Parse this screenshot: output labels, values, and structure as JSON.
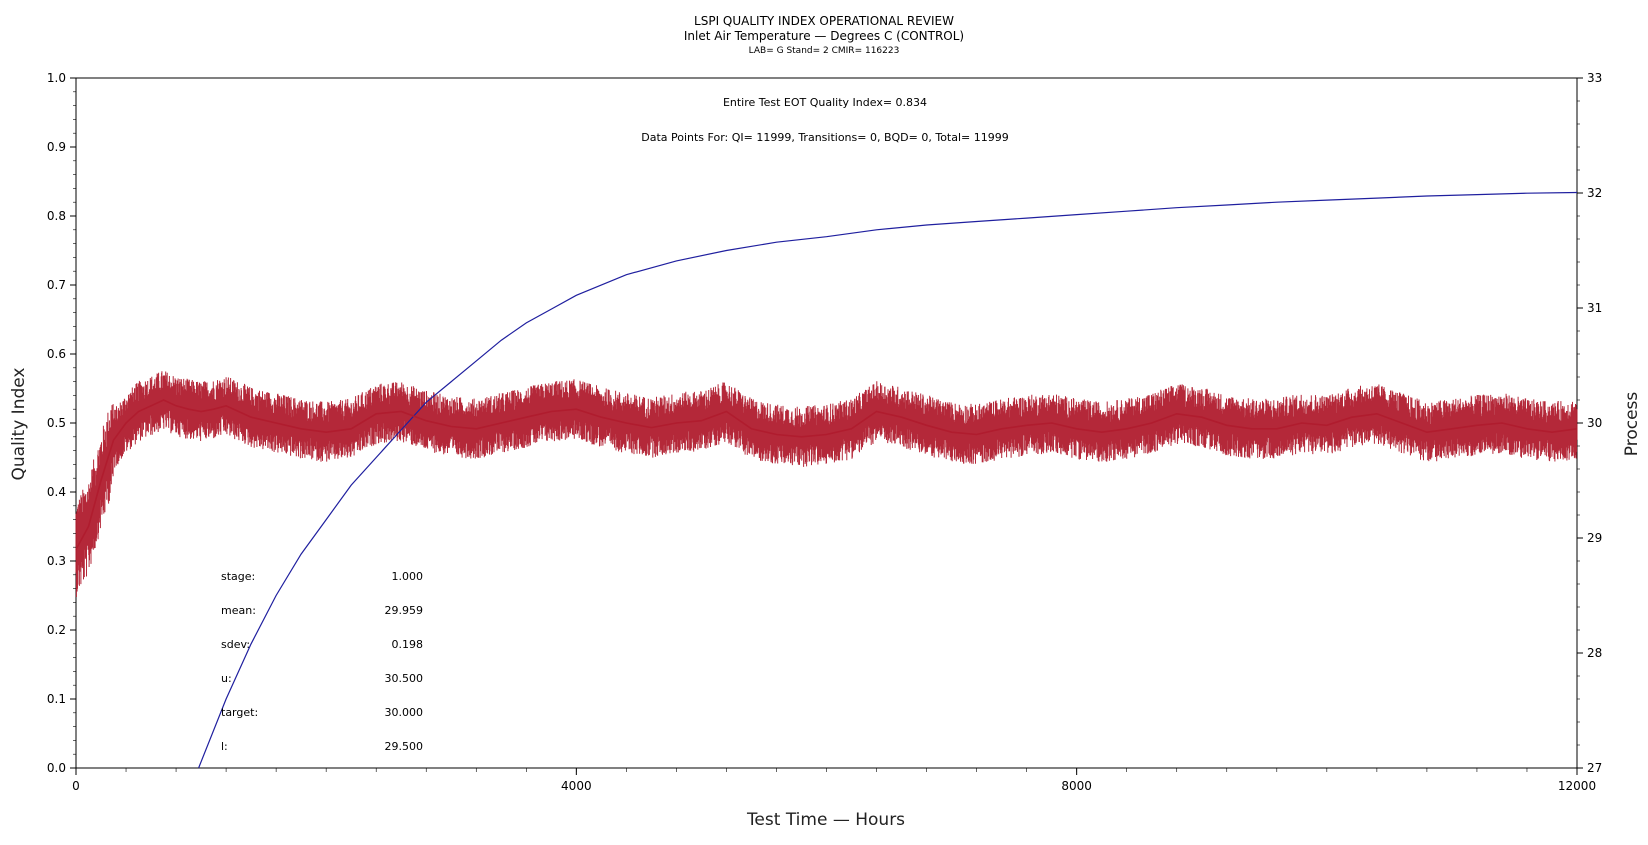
{
  "chart_data": {
    "type": "line",
    "title": "LSPI QUALITY INDEX OPERATIONAL REVIEW",
    "subtitle": "Inlet Air Temperature — Degrees C (CONTROL)",
    "subtitle2": "LAB= G Stand= 2 CMIR= 116223",
    "xlabel": "Test Time — Hours",
    "ylabel": "Quality Index",
    "y2label": "Process",
    "xlim": [
      0,
      12000
    ],
    "ylim": [
      0.0,
      1.0
    ],
    "y2lim": [
      27,
      33
    ],
    "x_ticks": [
      0,
      4000,
      8000,
      12000
    ],
    "y_ticks": [
      0.0,
      0.1,
      0.2,
      0.3,
      0.4,
      0.5,
      0.6,
      0.7,
      0.8,
      0.9,
      1.0
    ],
    "y_tick_labels": [
      "0.0",
      "0.1",
      "0.2",
      "0.3",
      "0.4",
      "0.5",
      "0.6",
      "0.7",
      "0.8",
      "0.9",
      "1.0"
    ],
    "y2_ticks": [
      27,
      28,
      29,
      30,
      31,
      32,
      33
    ],
    "grid": false,
    "annotations": {
      "qi_text": "Entire Test EOT Quality Index=   0.834",
      "points_text": "Data Points For: QI= 11999, Transitions=     0, BQD=     0, Total= 11999"
    },
    "stats": [
      {
        "label": "stage:",
        "value": "1.000"
      },
      {
        "label": "mean:",
        "value": "29.959"
      },
      {
        "label": "sdev:",
        "value": "0.198"
      },
      {
        "label": "u:",
        "value": "30.500"
      },
      {
        "label": "target:",
        "value": "30.000"
      },
      {
        "label": "l:",
        "value": "29.500"
      }
    ],
    "series": [
      {
        "axis": "left",
        "color": "#1f1f9f",
        "x": [
          980,
          1200,
          1400,
          1600,
          1800,
          2000,
          2200,
          2400,
          2600,
          2800,
          3000,
          3200,
          3400,
          3600,
          3800,
          4000,
          4400,
          4800,
          5200,
          5600,
          6000,
          6400,
          6800,
          7200,
          7600,
          8000,
          8400,
          8800,
          9200,
          9600,
          10000,
          10400,
          10800,
          11200,
          11600,
          12000
        ],
        "values": [
          0.0,
          0.1,
          0.18,
          0.25,
          0.31,
          0.36,
          0.41,
          0.45,
          0.49,
          0.53,
          0.56,
          0.59,
          0.62,
          0.645,
          0.665,
          0.685,
          0.715,
          0.735,
          0.75,
          0.762,
          0.77,
          0.78,
          0.787,
          0.792,
          0.797,
          0.802,
          0.807,
          0.812,
          0.816,
          0.82,
          0.823,
          0.826,
          0.829,
          0.831,
          0.833,
          0.834
        ]
      },
      {
        "axis": "right",
        "color": "#b01c2e",
        "x": [
          0,
          100,
          200,
          300,
          400,
          500,
          600,
          700,
          800,
          900,
          1000,
          1100,
          1200,
          1300,
          1400,
          1600,
          1800,
          2000,
          2200,
          2400,
          2600,
          2800,
          3000,
          3200,
          3400,
          3600,
          3800,
          4000,
          4200,
          4400,
          4600,
          4800,
          5000,
          5200,
          5400,
          5600,
          5800,
          6000,
          6200,
          6400,
          6600,
          6800,
          7000,
          7200,
          7400,
          7600,
          7800,
          8000,
          8200,
          8400,
          8600,
          8800,
          9000,
          9200,
          9400,
          9600,
          9800,
          10000,
          10200,
          10400,
          10600,
          10800,
          11000,
          11200,
          11400,
          11600,
          11800,
          12000
        ],
        "values": [
          28.9,
          29.1,
          29.5,
          29.85,
          30.0,
          30.1,
          30.15,
          30.2,
          30.15,
          30.12,
          30.1,
          30.12,
          30.15,
          30.1,
          30.05,
          30.0,
          29.95,
          29.92,
          29.95,
          30.08,
          30.1,
          30.02,
          29.97,
          29.95,
          30.0,
          30.05,
          30.1,
          30.12,
          30.05,
          30.0,
          29.96,
          30.0,
          30.02,
          30.1,
          29.95,
          29.9,
          29.88,
          29.9,
          29.95,
          30.1,
          30.05,
          29.98,
          29.92,
          29.9,
          29.95,
          29.98,
          30.0,
          29.95,
          29.92,
          29.95,
          30.0,
          30.08,
          30.05,
          29.98,
          29.95,
          29.95,
          30.0,
          29.98,
          30.05,
          30.08,
          30.0,
          29.92,
          29.95,
          29.98,
          30.0,
          29.95,
          29.92,
          29.95
        ]
      }
    ]
  }
}
